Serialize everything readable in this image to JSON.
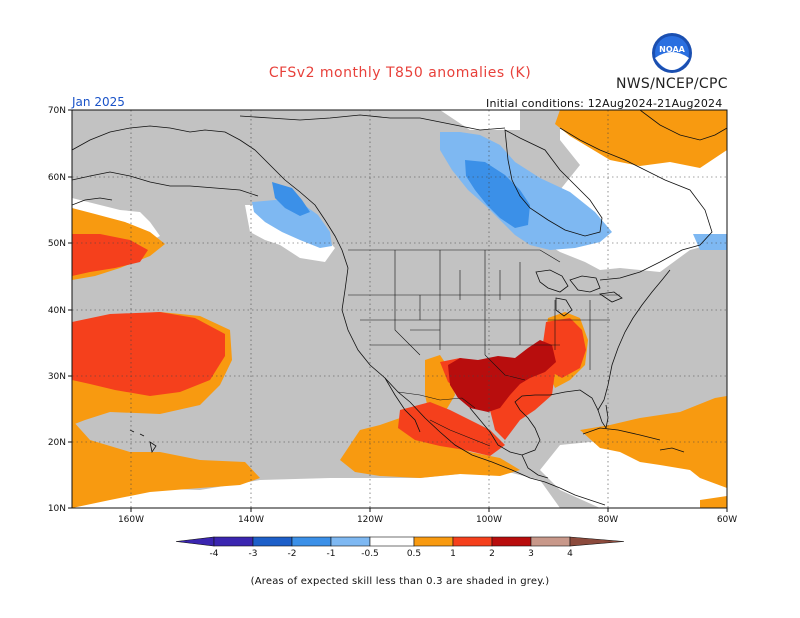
{
  "title": "CFSv2 monthly T850 anomalies (K)",
  "month": "Jan 2025",
  "initial_conditions": "Initial conditions: 12Aug2024-21Aug2024",
  "agency": "NWS/NCEP/CPC",
  "logo_text": "NOAA",
  "footnote": "(Areas of expected skill less than 0.3 are shaded in grey.)",
  "lat_labels": [
    "70N",
    "60N",
    "50N",
    "40N",
    "30N",
    "20N",
    "10N"
  ],
  "lon_labels": [
    "160W",
    "140W",
    "120W",
    "100W",
    "80W",
    "60W"
  ],
  "colorbar": {
    "labels": [
      "-4",
      "-3",
      "-2",
      "-1",
      "-0.5",
      "0.5",
      "1",
      "2",
      "3",
      "4"
    ],
    "colors": [
      "#3a25b0",
      "#1d5fc9",
      "#3b90e8",
      "#7eb8f2",
      "#ffffff",
      "#f89a10",
      "#f5401c",
      "#b80d0d",
      "#c8988a",
      "#8c4a3c"
    ]
  },
  "colors": {
    "skill_grey": "#c2c2c2",
    "warm_05_1": "#f89a10",
    "warm_1_2": "#f5401c",
    "warm_2_3": "#b80d0d",
    "cool_05_1": "#7eb8f2",
    "cool_1_2": "#3b90e8"
  }
}
